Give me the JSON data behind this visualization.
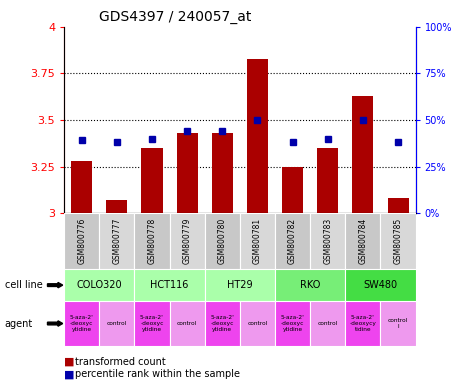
{
  "title": "GDS4397 / 240057_at",
  "samples": [
    "GSM800776",
    "GSM800777",
    "GSM800778",
    "GSM800779",
    "GSM800780",
    "GSM800781",
    "GSM800782",
    "GSM800783",
    "GSM800784",
    "GSM800785"
  ],
  "red_values": [
    3.28,
    3.07,
    3.35,
    3.43,
    3.43,
    3.83,
    3.25,
    3.35,
    3.63,
    3.08
  ],
  "blue_values": [
    0.39,
    0.38,
    0.4,
    0.44,
    0.44,
    0.5,
    0.38,
    0.4,
    0.5,
    0.38
  ],
  "ylim": [
    3.0,
    4.0
  ],
  "y2lim": [
    0.0,
    1.0
  ],
  "yticks": [
    3.0,
    3.25,
    3.5,
    3.75,
    4.0
  ],
  "ytick_labels": [
    "3",
    "3.25",
    "3.5",
    "3.75",
    "4"
  ],
  "y2ticks": [
    0.0,
    0.25,
    0.5,
    0.75,
    1.0
  ],
  "y2tick_labels": [
    "0%",
    "25%",
    "50%",
    "75%",
    "100%"
  ],
  "cell_lines": [
    {
      "label": "COLO320",
      "start": 0,
      "end": 2,
      "color": "#aaffaa"
    },
    {
      "label": "HCT116",
      "start": 2,
      "end": 4,
      "color": "#aaffaa"
    },
    {
      "label": "HT29",
      "start": 4,
      "end": 6,
      "color": "#aaffaa"
    },
    {
      "label": "RKO",
      "start": 6,
      "end": 8,
      "color": "#77ee77"
    },
    {
      "label": "SW480",
      "start": 8,
      "end": 10,
      "color": "#44dd44"
    }
  ],
  "agent_texts": [
    "5-aza-2'\n-deoxyc\nytidine",
    "control",
    "5-aza-2'\n-deoxyc\nytidine",
    "control",
    "5-aza-2'\n-deoxyc\nytidine",
    "control",
    "5-aza-2'\n-deoxyc\nytidine",
    "control",
    "5-aza-2'\n-deoxycy\ntidine",
    "control\nl"
  ],
  "agent_colors": [
    "#ee44ee",
    "#ee99ee",
    "#ee44ee",
    "#ee99ee",
    "#ee44ee",
    "#ee99ee",
    "#ee44ee",
    "#ee99ee",
    "#ee44ee",
    "#ee99ee"
  ],
  "bar_color": "#aa0000",
  "dot_color": "#0000aa",
  "bar_width": 0.6,
  "sample_colors": [
    "#c8c8c8",
    "#d8d8d8",
    "#c8c8c8",
    "#d8d8d8",
    "#c8c8c8",
    "#d8d8d8",
    "#c8c8c8",
    "#d8d8d8",
    "#c8c8c8",
    "#d8d8d8"
  ]
}
